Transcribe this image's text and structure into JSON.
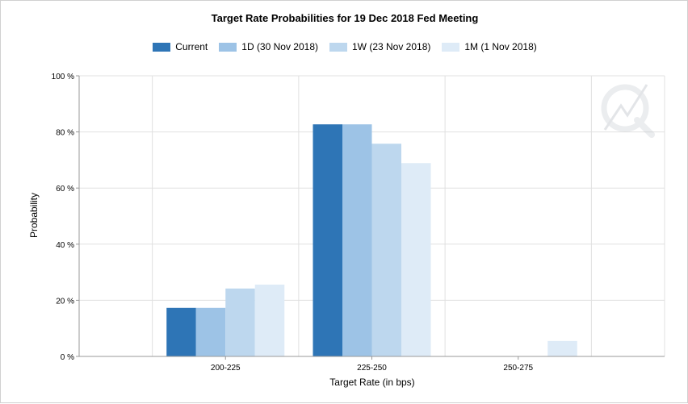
{
  "chart_data": {
    "type": "bar",
    "title": "Target Rate Probabilities for 19 Dec 2018 Fed Meeting",
    "xlabel": "Target Rate (in bps)",
    "ylabel": "Probability",
    "categories": [
      "200-225",
      "225-250",
      "250-275"
    ],
    "ylim": [
      0,
      100
    ],
    "yticks": [
      0,
      20,
      40,
      60,
      80,
      100
    ],
    "ytick_labels": [
      "0 %",
      "20 %",
      "40 %",
      "60 %",
      "80 %",
      "100 %"
    ],
    "grid": true,
    "legend_position": "top-center",
    "series": [
      {
        "name": "Current",
        "color": "#2e75b6",
        "values": [
          17.3,
          82.7,
          0
        ]
      },
      {
        "name": "1D (30 Nov 2018)",
        "color": "#9dc3e6",
        "values": [
          17.3,
          82.7,
          0
        ]
      },
      {
        "name": "1W (23 Nov 2018)",
        "color": "#bdd7ee",
        "values": [
          24.2,
          75.8,
          0
        ]
      },
      {
        "name": "1M (1 Nov 2018)",
        "color": "#deebf7",
        "values": [
          25.6,
          68.9,
          5.5
        ]
      }
    ]
  }
}
